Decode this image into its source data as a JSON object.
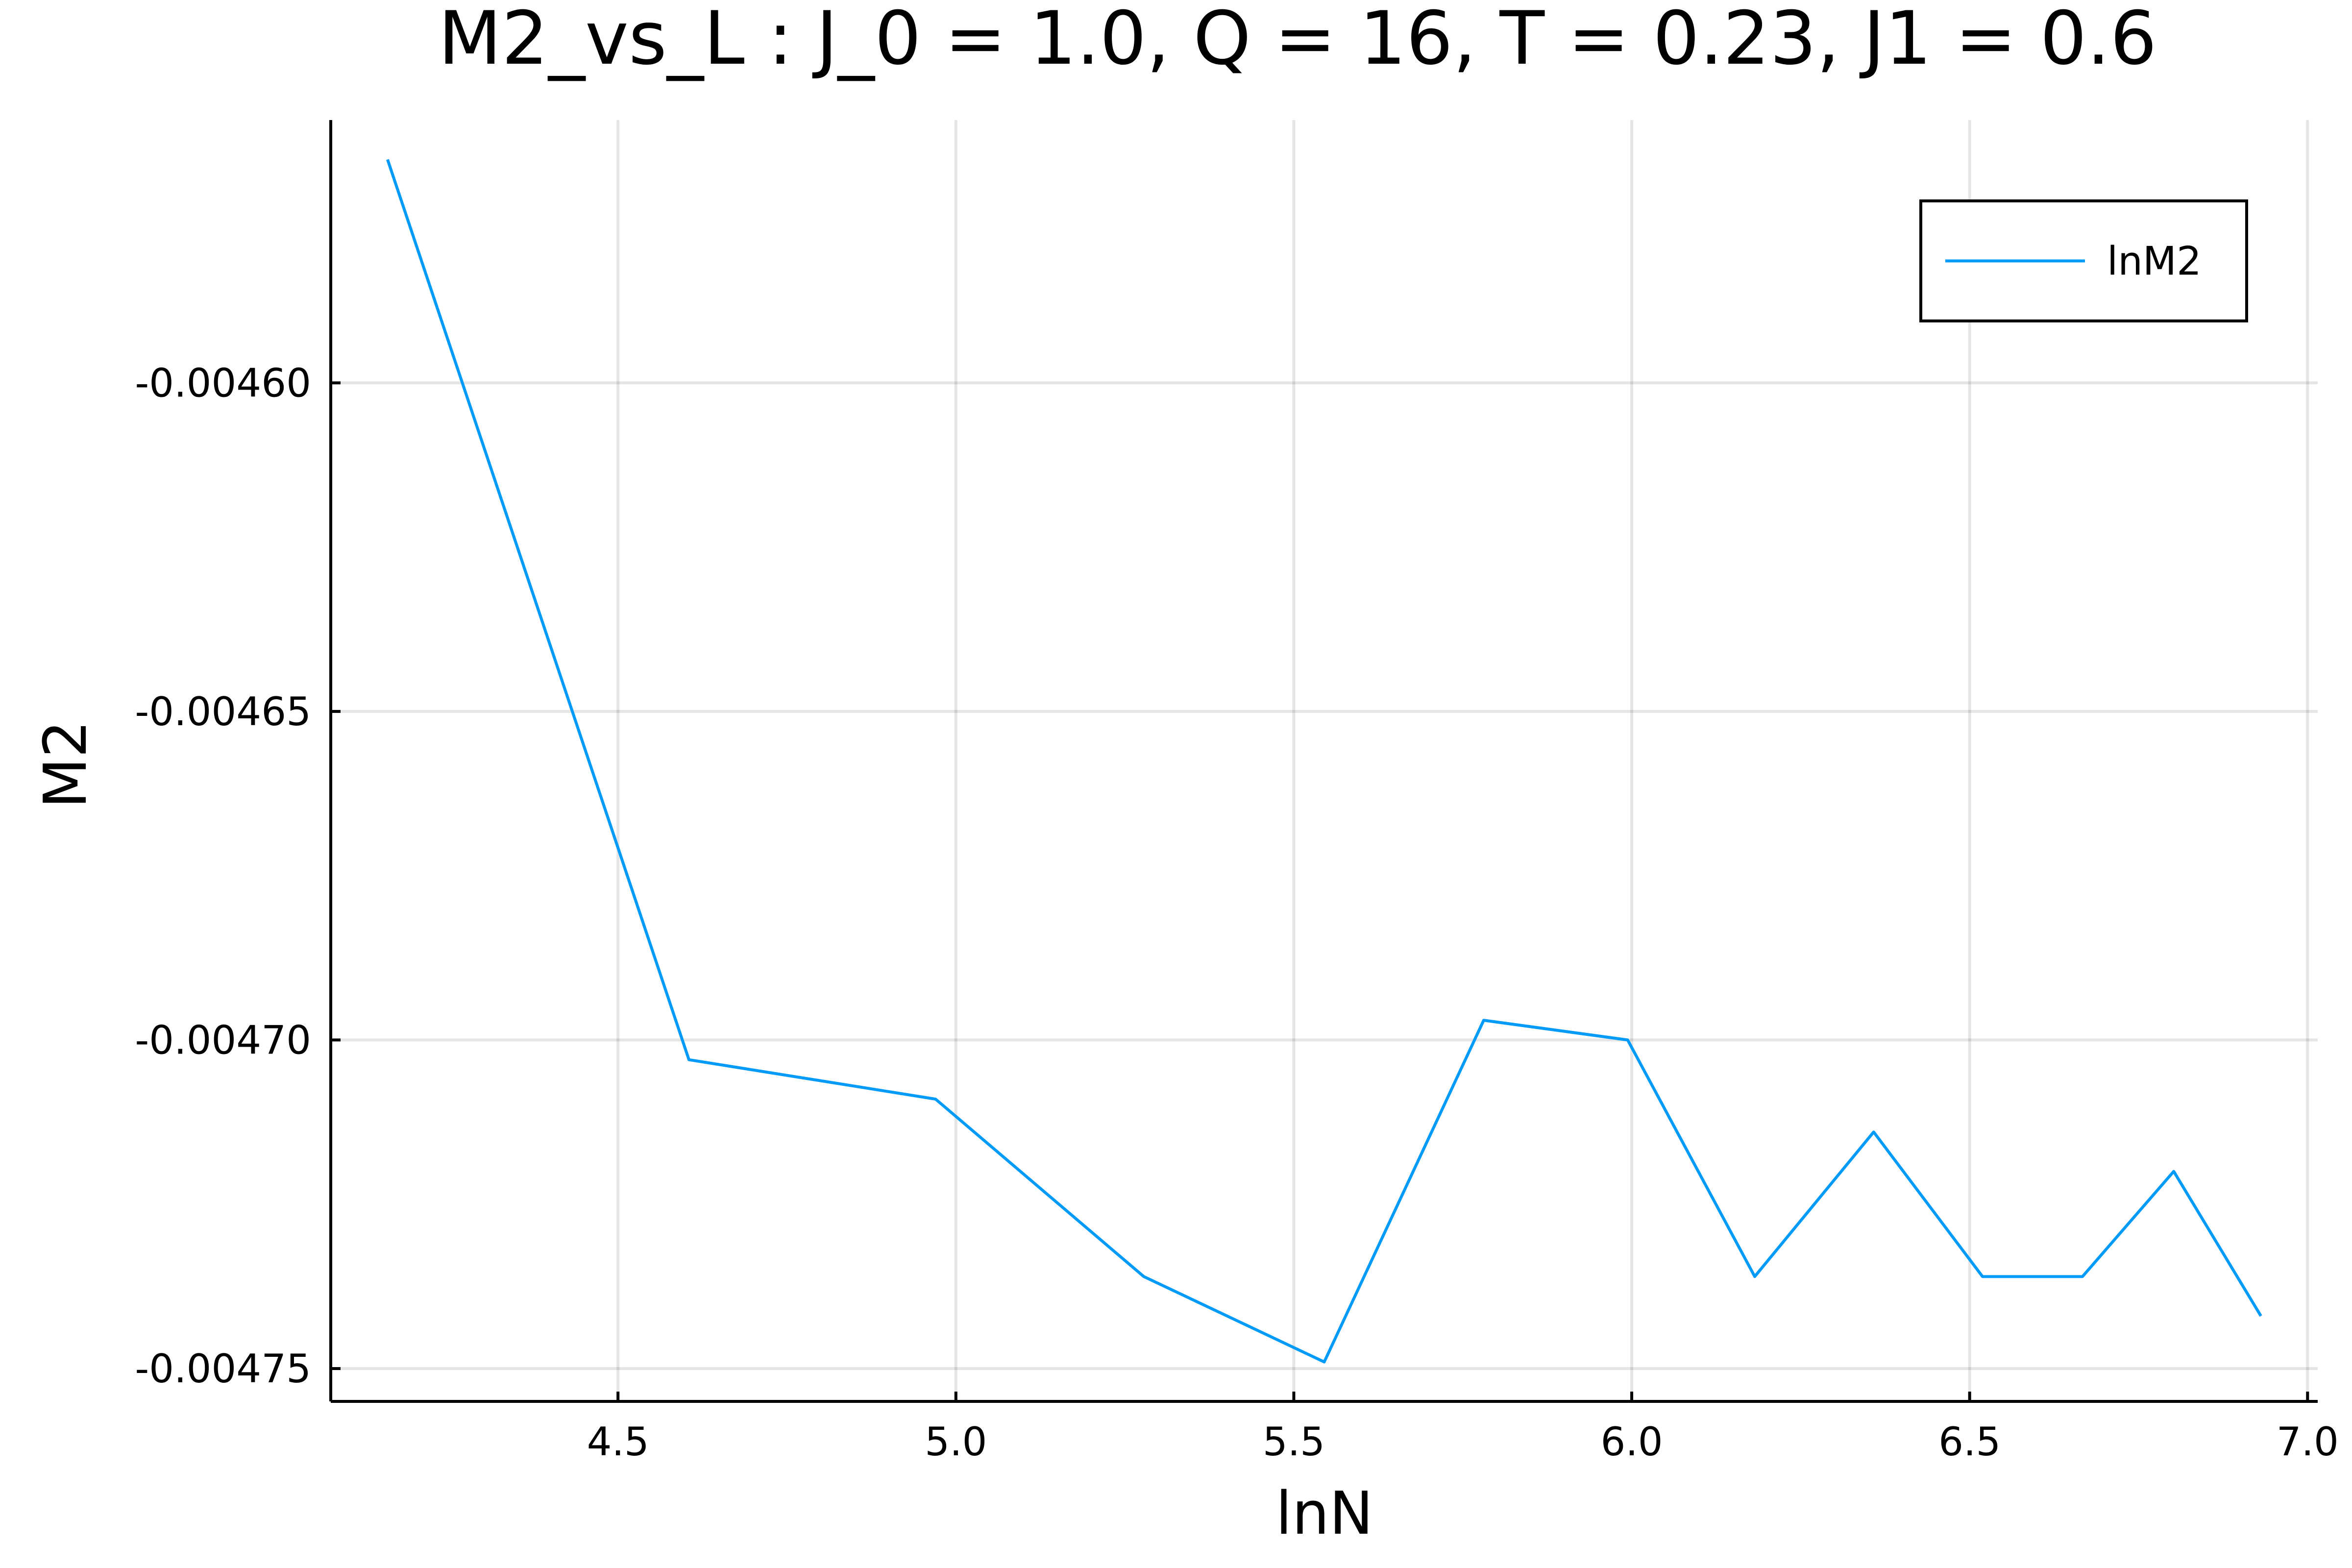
{
  "chart_data": {
    "type": "line",
    "title": "M2_vs_L : J_0 = 1.0, Q = 16, T = 0.23, J1 = 0.6",
    "xlabel": "lnN",
    "ylabel": "M2",
    "xlim": [
      4.075,
      7.015
    ],
    "ylim": [
      -0.004755,
      -0.00456
    ],
    "xticks": [
      4.5,
      5.0,
      5.5,
      6.0,
      6.5,
      7.0
    ],
    "xtick_labels": [
      "4.5",
      "5.0",
      "5.5",
      "6.0",
      "6.5",
      "7.0"
    ],
    "yticks": [
      -0.0046,
      -0.00465,
      -0.0047,
      -0.00475
    ],
    "ytick_labels": [
      "-0.00460",
      "-0.00465",
      "-0.00470",
      "-0.00475"
    ],
    "grid": true,
    "legend_position": "top-right",
    "series": [
      {
        "name": "lnM2",
        "color": "#009af9",
        "x": [
          4.159,
          4.605,
          4.97,
          5.278,
          5.545,
          5.781,
          5.994,
          6.182,
          6.358,
          6.519,
          6.667,
          6.802,
          6.931
        ],
        "y": [
          -0.004566,
          -0.004703,
          -0.004709,
          -0.004736,
          -0.004749,
          -0.004697,
          -0.0047,
          -0.004736,
          -0.004714,
          -0.004736,
          -0.004736,
          -0.00472,
          -0.004742
        ]
      }
    ]
  }
}
